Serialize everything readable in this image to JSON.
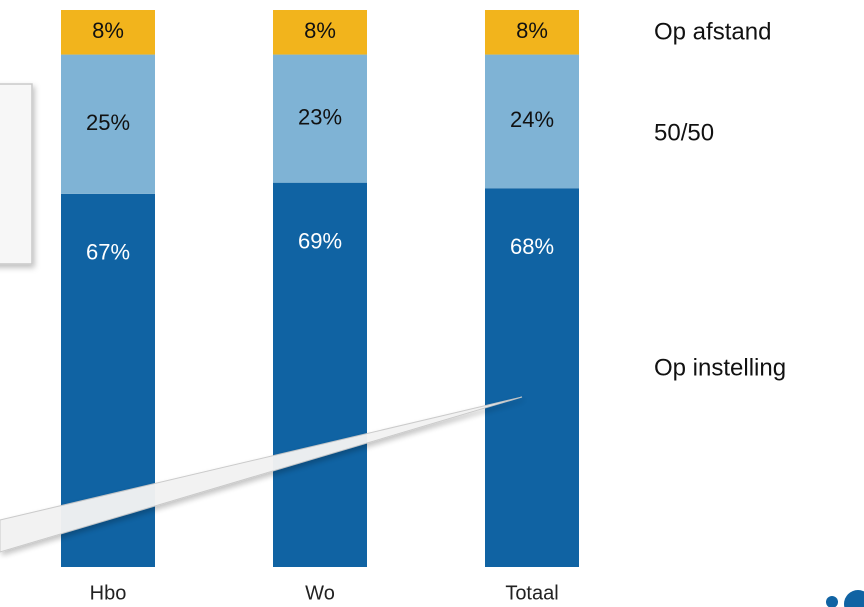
{
  "chart_data": {
    "type": "bar",
    "stacked": true,
    "categories": [
      "Hbo",
      "Wo",
      "Totaal"
    ],
    "series": [
      {
        "name": "Op instelling",
        "values": [
          67,
          69,
          68
        ],
        "value_labels": [
          "67%",
          "69%",
          "68%"
        ]
      },
      {
        "name": "50/50",
        "values": [
          25,
          23,
          24
        ],
        "value_labels": [
          "25%",
          "23%",
          "24%"
        ]
      },
      {
        "name": "Op afstand",
        "values": [
          8,
          8,
          8
        ],
        "value_labels": [
          "8%",
          "8%",
          "8%"
        ]
      }
    ],
    "unit": "%",
    "ylim": [
      0,
      100
    ],
    "grid": false,
    "legend_placement": "right"
  },
  "colors": {
    "Op instelling": "#1063a3",
    "50/50": "#7fb3d5",
    "Op afstand": "#f2b41c",
    "label_dark_bg": "#ffffff",
    "label_light_bg": "#111111",
    "callout_fill": "#f7f7f7",
    "callout_border": "#c9c9c9",
    "logo_accent": "#1063a3"
  }
}
